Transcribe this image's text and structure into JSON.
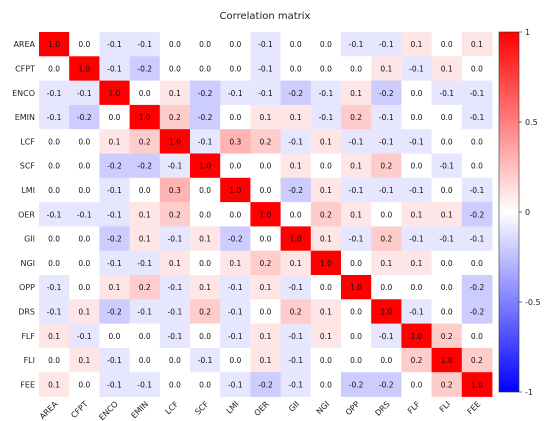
{
  "chart_data": {
    "type": "heatmap",
    "title": "Correlation matrix",
    "variables": [
      "AREA",
      "CFPT",
      "ENCO",
      "EMIN",
      "LCF",
      "SCF",
      "LMI",
      "OER",
      "GII",
      "NGI",
      "OPP",
      "DRS",
      "FLF",
      "FLI",
      "FEE"
    ],
    "matrix": [
      [
        1.0,
        -0.0,
        -0.1,
        -0.1,
        0.0,
        -0.0,
        0.0,
        -0.1,
        -0.0,
        -0.0,
        -0.1,
        -0.1,
        0.1,
        0.0,
        0.1
      ],
      [
        -0.0,
        1.0,
        -0.1,
        -0.2,
        -0.0,
        -0.0,
        0.0,
        -0.1,
        0.0,
        0.0,
        0.0,
        0.1,
        -0.1,
        0.1,
        -0.0
      ],
      [
        -0.1,
        -0.1,
        1.0,
        -0.0,
        0.1,
        -0.2,
        -0.1,
        -0.1,
        -0.2,
        -0.1,
        0.1,
        -0.2,
        -0.0,
        -0.1,
        -0.1
      ],
      [
        -0.1,
        -0.2,
        -0.0,
        1.0,
        0.2,
        -0.2,
        -0.0,
        0.1,
        0.1,
        -0.1,
        0.2,
        -0.1,
        0.0,
        0.0,
        -0.1
      ],
      [
        0.0,
        -0.0,
        0.1,
        0.2,
        1.0,
        -0.1,
        0.3,
        0.2,
        -0.1,
        0.1,
        -0.1,
        -0.1,
        -0.1,
        -0.0,
        0.0
      ],
      [
        -0.0,
        -0.0,
        -0.2,
        -0.2,
        -0.1,
        1.0,
        -0.0,
        -0.0,
        0.1,
        -0.0,
        0.1,
        0.2,
        -0.0,
        -0.1,
        0.0
      ],
      [
        0.0,
        0.0,
        -0.1,
        -0.0,
        0.3,
        -0.0,
        1.0,
        0.0,
        -0.2,
        0.1,
        -0.1,
        -0.1,
        -0.1,
        0.0,
        -0.1
      ],
      [
        -0.1,
        -0.1,
        -0.1,
        0.1,
        0.2,
        -0.0,
        0.0,
        1.0,
        0.0,
        0.2,
        0.1,
        -0.0,
        0.1,
        0.1,
        -0.2
      ],
      [
        -0.0,
        0.0,
        -0.2,
        0.1,
        -0.1,
        0.1,
        -0.2,
        0.0,
        1.0,
        0.1,
        -0.1,
        0.2,
        -0.1,
        -0.1,
        -0.1
      ],
      [
        -0.0,
        0.0,
        -0.1,
        -0.1,
        0.1,
        -0.0,
        0.1,
        0.2,
        0.1,
        1.0,
        -0.0,
        0.1,
        0.1,
        0.0,
        0.0
      ],
      [
        -0.1,
        0.0,
        0.1,
        0.2,
        -0.1,
        0.1,
        -0.1,
        0.1,
        -0.1,
        -0.0,
        1.0,
        -0.0,
        0.0,
        -0.0,
        -0.2
      ],
      [
        -0.1,
        0.1,
        -0.2,
        -0.1,
        -0.1,
        0.2,
        -0.1,
        -0.0,
        0.2,
        0.1,
        -0.0,
        1.0,
        -0.1,
        0.0,
        -0.2
      ],
      [
        0.1,
        -0.1,
        -0.0,
        0.0,
        -0.1,
        -0.0,
        -0.1,
        0.1,
        -0.1,
        0.1,
        0.0,
        -0.1,
        1.0,
        0.2,
        0.0
      ],
      [
        0.0,
        0.1,
        -0.1,
        0.0,
        -0.0,
        -0.1,
        0.0,
        0.1,
        -0.1,
        0.0,
        -0.0,
        0.0,
        0.2,
        1.0,
        0.2
      ],
      [
        0.1,
        -0.0,
        -0.1,
        -0.1,
        0.0,
        0.0,
        -0.1,
        -0.2,
        -0.1,
        0.0,
        -0.2,
        -0.2,
        0.0,
        0.2,
        1.0
      ]
    ],
    "value_range": [
      -1,
      1
    ],
    "colormap": {
      "negative": "#0000ff",
      "zero": "#ffffff",
      "positive": "#ff0000"
    },
    "colorbar": {
      "ticks": [
        1,
        0.5,
        0,
        -0.5,
        -1
      ],
      "tick_labels": [
        "1",
        "0.5",
        "0",
        "-0.5",
        "-1"
      ],
      "placement": "right"
    }
  }
}
